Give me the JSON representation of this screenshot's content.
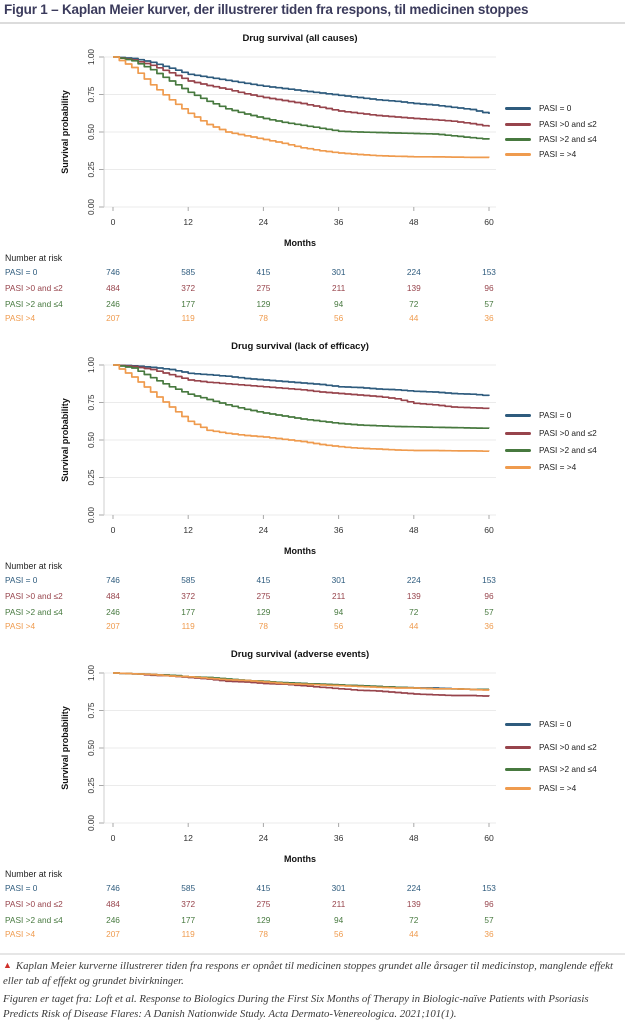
{
  "header": {
    "title": "Figur 1 – Kaplan Meier kurver, der illustrerer tiden fra respons, til medicinen stoppes"
  },
  "colors": {
    "pasi0": "#2e5b7d",
    "pasi0to2": "#97444c",
    "pasi2to4": "#47793f",
    "pasi4": "#ef9b4e",
    "header_text": "#3b3b5c",
    "grid": "#ebebeb",
    "axis": "#a8a8a8",
    "caption_marker": "#cf2f2a"
  },
  "axis": {
    "ylabel": "Survival probability",
    "xlabel": "Months",
    "yticks": [
      "0.00",
      "0.25",
      "0.50",
      "0.75",
      "1.00"
    ],
    "xticks": [
      "0",
      "12",
      "24",
      "36",
      "48",
      "60"
    ]
  },
  "legend": {
    "items": [
      {
        "label": "PASI = 0",
        "color_key": "pasi0"
      },
      {
        "label": "PASI >0 and ≤2",
        "color_key": "pasi0to2"
      },
      {
        "label": "PASI >2 and ≤4",
        "color_key": "pasi2to4"
      },
      {
        "label": "PASI = >4",
        "color_key": "pasi4"
      }
    ]
  },
  "risk_table": {
    "title": "Number at risk",
    "months": [
      0,
      12,
      24,
      36,
      48,
      60
    ],
    "rows": [
      {
        "label": "PASI = 0",
        "color_key": "pasi0",
        "values": [
          "746",
          "585",
          "415",
          "301",
          "224",
          "153"
        ]
      },
      {
        "label": "PASI >0 and ≤2",
        "color_key": "pasi0to2",
        "values": [
          "484",
          "372",
          "275",
          "211",
          "139",
          "96"
        ]
      },
      {
        "label": "PASI >2 and ≤4",
        "color_key": "pasi2to4",
        "values": [
          "246",
          "177",
          "129",
          "94",
          "72",
          "57"
        ]
      },
      {
        "label": "PASI >4",
        "color_key": "pasi4",
        "values": [
          "207",
          "119",
          "78",
          "56",
          "44",
          "36"
        ]
      }
    ]
  },
  "chart_data": [
    {
      "type": "line",
      "subtype": "kaplan-meier-step",
      "title": "Drug survival (all causes)",
      "xlabel": "Months",
      "ylabel": "Survival probability",
      "xlim": [
        0,
        60
      ],
      "ylim": [
        0,
        1
      ],
      "x_months": [
        0,
        3,
        6,
        9,
        12,
        15,
        18,
        21,
        24,
        27,
        30,
        33,
        36,
        39,
        42,
        45,
        48,
        51,
        54,
        57,
        60
      ],
      "series": [
        {
          "name": "PASI = 0",
          "color_key": "pasi0",
          "values": [
            1.0,
            0.99,
            0.965,
            0.925,
            0.885,
            0.865,
            0.845,
            0.825,
            0.805,
            0.79,
            0.775,
            0.76,
            0.745,
            0.73,
            0.715,
            0.705,
            0.69,
            0.68,
            0.665,
            0.65,
            0.62
          ]
        },
        {
          "name": "PASI >0 and ≤2",
          "color_key": "pasi0to2",
          "values": [
            1.0,
            0.98,
            0.945,
            0.895,
            0.84,
            0.81,
            0.785,
            0.755,
            0.73,
            0.71,
            0.69,
            0.665,
            0.64,
            0.625,
            0.61,
            0.6,
            0.59,
            0.582,
            0.572,
            0.556,
            0.535
          ]
        },
        {
          "name": "PASI >2 and ≤4",
          "color_key": "pasi2to4",
          "values": [
            1.0,
            0.975,
            0.915,
            0.84,
            0.765,
            0.705,
            0.655,
            0.62,
            0.59,
            0.565,
            0.545,
            0.525,
            0.505,
            0.5,
            0.497,
            0.493,
            0.49,
            0.487,
            0.475,
            0.462,
            0.45
          ]
        },
        {
          "name": "PASI = >4",
          "color_key": "pasi4",
          "values": [
            1.0,
            0.93,
            0.815,
            0.715,
            0.625,
            0.55,
            0.5,
            0.475,
            0.45,
            0.425,
            0.395,
            0.375,
            0.36,
            0.35,
            0.342,
            0.338,
            0.335,
            0.334,
            0.333,
            0.331,
            0.33
          ]
        }
      ]
    },
    {
      "type": "line",
      "subtype": "kaplan-meier-step",
      "title": "Drug survival (lack of efficacy)",
      "xlabel": "Months",
      "ylabel": "Survival probability",
      "xlim": [
        0,
        60
      ],
      "ylim": [
        0,
        1
      ],
      "x_months": [
        0,
        3,
        6,
        9,
        12,
        15,
        18,
        21,
        24,
        27,
        30,
        33,
        36,
        39,
        42,
        45,
        48,
        51,
        54,
        57,
        60
      ],
      "series": [
        {
          "name": "PASI = 0",
          "color_key": "pasi0",
          "values": [
            1.0,
            0.995,
            0.985,
            0.97,
            0.945,
            0.935,
            0.925,
            0.91,
            0.9,
            0.89,
            0.88,
            0.87,
            0.855,
            0.85,
            0.84,
            0.835,
            0.825,
            0.82,
            0.81,
            0.805,
            0.795
          ]
        },
        {
          "name": "PASI >0 and ≤2",
          "color_key": "pasi0to2",
          "values": [
            1.0,
            0.99,
            0.97,
            0.935,
            0.9,
            0.885,
            0.875,
            0.865,
            0.855,
            0.845,
            0.835,
            0.82,
            0.81,
            0.8,
            0.79,
            0.775,
            0.745,
            0.735,
            0.72,
            0.715,
            0.71
          ]
        },
        {
          "name": "PASI >2 and ≤4",
          "color_key": "pasi2to4",
          "values": [
            1.0,
            0.98,
            0.915,
            0.855,
            0.805,
            0.77,
            0.735,
            0.705,
            0.68,
            0.66,
            0.64,
            0.625,
            0.61,
            0.6,
            0.595,
            0.59,
            0.588,
            0.585,
            0.583,
            0.58,
            0.578
          ]
        },
        {
          "name": "PASI = >4",
          "color_key": "pasi4",
          "values": [
            1.0,
            0.92,
            0.82,
            0.72,
            0.625,
            0.565,
            0.545,
            0.53,
            0.52,
            0.505,
            0.49,
            0.47,
            0.455,
            0.445,
            0.44,
            0.433,
            0.43,
            0.43,
            0.428,
            0.427,
            0.425
          ]
        }
      ]
    },
    {
      "type": "line",
      "subtype": "kaplan-meier-step",
      "title": "Drug survival (adverse events)",
      "xlabel": "Months",
      "ylabel": "Survival probability",
      "xlim": [
        0,
        60
      ],
      "ylim": [
        0,
        1
      ],
      "x_months": [
        0,
        3,
        6,
        9,
        12,
        15,
        18,
        21,
        24,
        27,
        30,
        33,
        36,
        39,
        42,
        45,
        48,
        51,
        54,
        57,
        60
      ],
      "series": [
        {
          "name": "PASI = 0",
          "color_key": "pasi0",
          "values": [
            1.0,
            0.995,
            0.99,
            0.985,
            0.975,
            0.965,
            0.955,
            0.95,
            0.94,
            0.935,
            0.93,
            0.925,
            0.92,
            0.915,
            0.91,
            0.905,
            0.9,
            0.9,
            0.895,
            0.89,
            0.89
          ]
        },
        {
          "name": "PASI >0 and ≤2",
          "color_key": "pasi0to2",
          "values": [
            1.0,
            0.995,
            0.985,
            0.98,
            0.97,
            0.96,
            0.945,
            0.94,
            0.93,
            0.925,
            0.915,
            0.905,
            0.895,
            0.885,
            0.88,
            0.87,
            0.86,
            0.855,
            0.85,
            0.85,
            0.845
          ]
        },
        {
          "name": "PASI >2 and ≤4",
          "color_key": "pasi2to4",
          "values": [
            1.0,
            0.995,
            0.99,
            0.985,
            0.975,
            0.97,
            0.96,
            0.95,
            0.945,
            0.935,
            0.93,
            0.925,
            0.92,
            0.915,
            0.91,
            0.905,
            0.9,
            0.895,
            0.895,
            0.89,
            0.89
          ]
        },
        {
          "name": "PASI = >4",
          "color_key": "pasi4",
          "values": [
            1.0,
            0.995,
            0.99,
            0.98,
            0.975,
            0.965,
            0.955,
            0.95,
            0.94,
            0.93,
            0.925,
            0.92,
            0.915,
            0.91,
            0.905,
            0.9,
            0.9,
            0.895,
            0.895,
            0.89,
            0.885
          ]
        }
      ]
    }
  ],
  "caption": {
    "marker": "▲",
    "note": "Kaplan Meier kurverne illustrerer tiden fra respons er opnået til medicinen stoppes grundet alle årsager til medicinstop, manglende effekt eller tab af effekt og grundet bivirkninger.",
    "source": "Figuren er taget fra: Loft et al. Response to Biologics During the First Six Months of Therapy in Biologic-naïve Patients with Psoriasis Predicts Risk of Disease Flares: A Danish Nationwide Study. Acta Dermato-Venereologica. 2021;101(1)."
  }
}
